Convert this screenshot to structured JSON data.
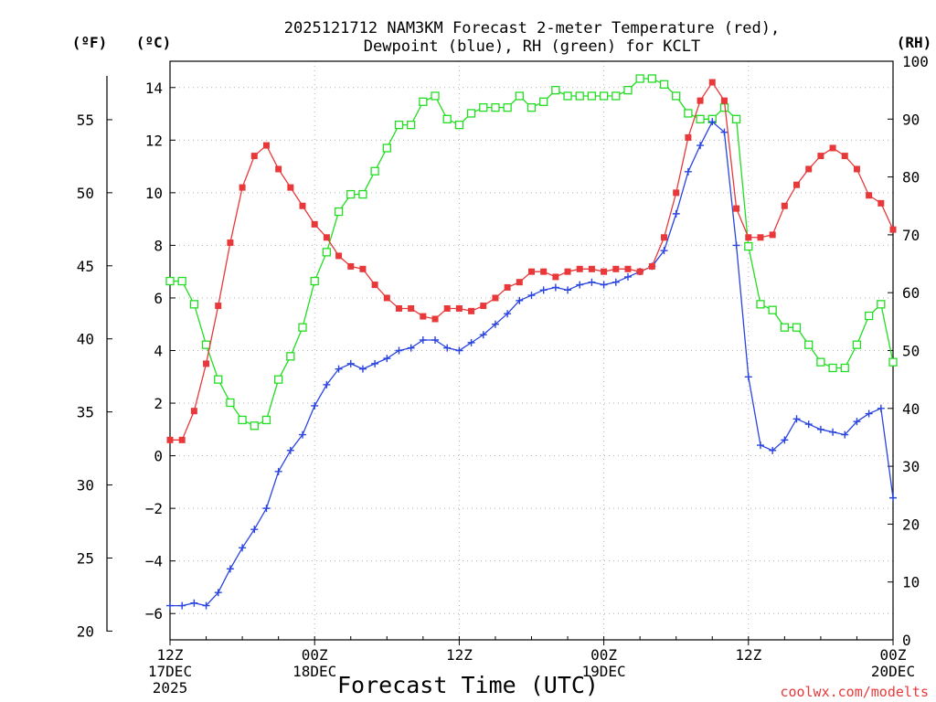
{
  "chart_data": {
    "type": "line",
    "title_line1": "2025121712 NAM3KM Forecast 2-meter Temperature (red),",
    "title_line2": "Dewpoint (blue), RH (green) for KCLT",
    "left_axis_f_label": "(ºF)",
    "left_axis_c_label": "(ºC)",
    "right_axis_label": "(RH)",
    "xlabel": "Forecast Time (UTC)",
    "credit": "coolwx.com/modelts",
    "colors": {
      "temperature": "#e8383a",
      "dewpoint": "#2a44e0",
      "rh": "#22dd22",
      "grid": "#b0b0b0"
    },
    "y_celsius": {
      "min": -7,
      "max": 15,
      "ticks": [
        -6,
        -4,
        -2,
        0,
        2,
        4,
        6,
        8,
        10,
        12,
        14
      ]
    },
    "y_fahrenheit": {
      "min": 20,
      "max": 58,
      "ticks": [
        20,
        25,
        30,
        35,
        40,
        45,
        50,
        55
      ]
    },
    "y_rh": {
      "min": 0,
      "max": 100,
      "ticks": [
        0,
        10,
        20,
        30,
        40,
        50,
        60,
        70,
        80,
        90,
        100
      ]
    },
    "x_hours": {
      "min": 0,
      "max": 60
    },
    "x_ticks": [
      {
        "hour": 0,
        "line1": "12Z",
        "line2": "17DEC",
        "line3": "2025"
      },
      {
        "hour": 12,
        "line1": "00Z",
        "line2": "18DEC",
        "line3": ""
      },
      {
        "hour": 24,
        "line1": "12Z",
        "line2": "",
        "line3": ""
      },
      {
        "hour": 36,
        "line1": "00Z",
        "line2": "19DEC",
        "line3": ""
      },
      {
        "hour": 48,
        "line1": "12Z",
        "line2": "",
        "line3": ""
      },
      {
        "hour": 60,
        "line1": "00Z",
        "line2": "20DEC",
        "line3": ""
      }
    ],
    "series": [
      {
        "name": "Temperature",
        "unit": "C",
        "marker": "filled-square",
        "values": [
          0.6,
          0.6,
          1.7,
          3.5,
          5.7,
          8.1,
          10.2,
          11.4,
          11.8,
          10.9,
          10.2,
          9.5,
          8.8,
          8.3,
          7.6,
          7.2,
          7.1,
          6.5,
          6.0,
          5.6,
          5.6,
          5.3,
          5.2,
          5.6,
          5.6,
          5.5,
          5.7,
          6.0,
          6.4,
          6.6,
          7.0,
          7.0,
          6.8,
          7.0,
          7.1,
          7.1,
          7.0,
          7.1,
          7.1,
          7.0,
          7.2,
          8.3,
          10.0,
          12.1,
          13.5,
          14.2,
          13.5,
          9.4,
          8.3,
          8.3,
          8.4,
          9.5,
          10.3,
          10.9,
          11.4,
          11.7,
          11.4,
          10.9,
          9.9,
          9.6,
          8.6
        ]
      },
      {
        "name": "Dewpoint",
        "unit": "C",
        "marker": "plus",
        "values": [
          -5.7,
          -5.7,
          -5.6,
          -5.7,
          -5.2,
          -4.3,
          -3.5,
          -2.8,
          -2.0,
          -0.6,
          0.2,
          0.8,
          1.9,
          2.7,
          3.3,
          3.5,
          3.3,
          3.5,
          3.7,
          4.0,
          4.1,
          4.4,
          4.4,
          4.1,
          4.0,
          4.3,
          4.6,
          5.0,
          5.4,
          5.9,
          6.1,
          6.3,
          6.4,
          6.3,
          6.5,
          6.6,
          6.5,
          6.6,
          6.8,
          7.0,
          7.2,
          7.8,
          9.2,
          10.8,
          11.8,
          12.7,
          12.3,
          8.0,
          3.0,
          0.4,
          0.2,
          0.6,
          1.4,
          1.2,
          1.0,
          0.9,
          0.8,
          1.3,
          1.6,
          1.8,
          -1.6
        ]
      },
      {
        "name": "RH",
        "unit": "%",
        "marker": "open-square",
        "values": [
          62,
          62,
          58,
          51,
          45,
          41,
          38,
          37,
          38,
          45,
          49,
          54,
          62,
          67,
          74,
          77,
          77,
          81,
          85,
          89,
          89,
          93,
          94,
          90,
          89,
          91,
          92,
          92,
          92,
          94,
          92,
          93,
          95,
          94,
          94,
          94,
          94,
          94,
          95,
          97,
          97,
          96,
          94,
          91,
          90,
          90,
          92,
          90,
          68,
          58,
          57,
          54,
          54,
          51,
          48,
          47,
          47,
          51,
          56,
          58,
          48
        ]
      }
    ]
  }
}
